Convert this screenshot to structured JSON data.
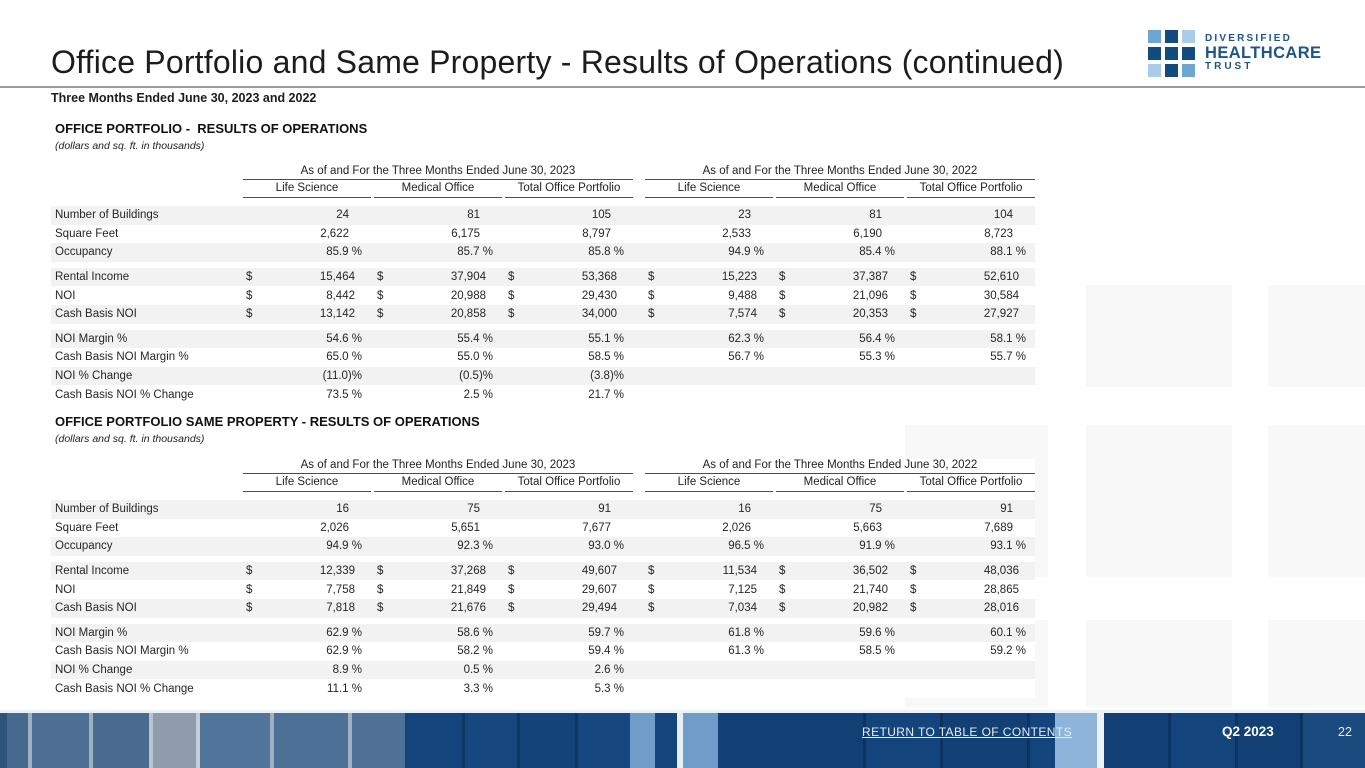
{
  "header": {
    "title": "Office Portfolio and Same Property - Results of Operations (continued)",
    "subtitle": "Three Months Ended June 30, 2023 and 2022",
    "logo": {
      "line1": "DIVERSIFIED",
      "line2": "HEALTHCARE",
      "line3": "TRUST",
      "colors": {
        "navy": "#134a80",
        "mid_blue": "#6ea5d2",
        "light_blue": "#a9cce7",
        "text": "#1d5586"
      }
    }
  },
  "tables": [
    {
      "section_title": "OFFICE PORTFOLIO -  RESULTS OF OPERATIONS",
      "section_note": "(dollars and sq. ft. in thousands)",
      "group_headers": [
        "As of and For the Three Months Ended June 30, 2023",
        "As of and For the Three Months Ended June 30, 2022"
      ],
      "column_headers": [
        "Life Science",
        "Medical Office",
        "Total Office Portfolio",
        "Life Science",
        "Medical Office",
        "Total Office Portfolio"
      ],
      "rows": [
        {
          "label": "Number of Buildings",
          "type": "num",
          "values": [
            "24",
            "81",
            "105",
            "23",
            "81",
            "104"
          ]
        },
        {
          "label": "Square Feet",
          "type": "num",
          "values": [
            "2,622",
            "6,175",
            "8,797",
            "2,533",
            "6,190",
            "8,723"
          ]
        },
        {
          "label": "Occupancy",
          "type": "pct",
          "values": [
            "85.9 %",
            "85.7 %",
            "85.8 %",
            "94.9 %",
            "85.4 %",
            "88.1 %"
          ]
        },
        {
          "label": "Rental Income",
          "type": "money",
          "values": [
            "15,464",
            "37,904",
            "53,368",
            "15,223",
            "37,387",
            "52,610"
          ]
        },
        {
          "label": "NOI",
          "type": "money",
          "values": [
            "8,442",
            "20,988",
            "29,430",
            "9,488",
            "21,096",
            "30,584"
          ]
        },
        {
          "label": "Cash Basis NOI",
          "type": "money",
          "values": [
            "13,142",
            "20,858",
            "34,000",
            "7,574",
            "20,353",
            "27,927"
          ]
        },
        {
          "label": "NOI Margin %",
          "type": "pct",
          "values": [
            "54.6 %",
            "55.4 %",
            "55.1 %",
            "62.3 %",
            "56.4 %",
            "58.1 %"
          ]
        },
        {
          "label": "Cash Basis NOI Margin %",
          "type": "pct",
          "values": [
            "65.0 %",
            "55.0 %",
            "58.5 %",
            "56.7 %",
            "55.3 %",
            "55.7 %"
          ]
        },
        {
          "label": "NOI % Change",
          "type": "pct",
          "values": [
            "(11.0)%",
            "(0.5)%",
            "(3.8)%",
            "",
            "",
            ""
          ]
        },
        {
          "label": "Cash Basis NOI % Change",
          "type": "pct",
          "values": [
            "73.5 %",
            "2.5 %",
            "21.7 %",
            "",
            "",
            ""
          ]
        }
      ],
      "group_breaks_after": [
        2,
        5
      ]
    },
    {
      "section_title": "OFFICE PORTFOLIO SAME PROPERTY - RESULTS OF OPERATIONS",
      "section_note": "(dollars and sq. ft. in thousands)",
      "group_headers": [
        "As of and For the Three Months Ended June 30, 2023",
        "As of and For the Three Months Ended June 30, 2022"
      ],
      "column_headers": [
        "Life Science",
        "Medical Office",
        "Total Office Portfolio",
        "Life Science",
        "Medical Office",
        "Total Office Portfolio"
      ],
      "rows": [
        {
          "label": "Number of Buildings",
          "type": "num",
          "values": [
            "16",
            "75",
            "91",
            "16",
            "75",
            "91"
          ]
        },
        {
          "label": "Square Feet",
          "type": "num",
          "values": [
            "2,026",
            "5,651",
            "7,677",
            "2,026",
            "5,663",
            "7,689"
          ]
        },
        {
          "label": "Occupancy",
          "type": "pct",
          "values": [
            "94.9 %",
            "92.3 %",
            "93.0 %",
            "96.5 %",
            "91.9 %",
            "93.1 %"
          ]
        },
        {
          "label": "Rental Income",
          "type": "money",
          "values": [
            "12,339",
            "37,268",
            "49,607",
            "11,534",
            "36,502",
            "48,036"
          ]
        },
        {
          "label": "NOI",
          "type": "money",
          "values": [
            "7,758",
            "21,849",
            "29,607",
            "7,125",
            "21,740",
            "28,865"
          ]
        },
        {
          "label": "Cash Basis NOI",
          "type": "money",
          "values": [
            "7,818",
            "21,676",
            "29,494",
            "7,034",
            "20,982",
            "28,016"
          ]
        },
        {
          "label": "NOI Margin %",
          "type": "pct",
          "values": [
            "62.9 %",
            "58.6 %",
            "59.7 %",
            "61.8 %",
            "59.6 %",
            "60.1 %"
          ]
        },
        {
          "label": "Cash Basis NOI Margin %",
          "type": "pct",
          "values": [
            "62.9 %",
            "58.2 %",
            "59.4 %",
            "61.3 %",
            "58.5 %",
            "59.2 %"
          ]
        },
        {
          "label": "NOI % Change",
          "type": "pct",
          "values": [
            "8.9 %",
            "0.5 %",
            "2.6 %",
            "",
            "",
            ""
          ]
        },
        {
          "label": "Cash Basis NOI % Change",
          "type": "pct",
          "values": [
            "11.1 %",
            "3.3 %",
            "5.3 %",
            "",
            "",
            ""
          ]
        }
      ],
      "group_breaks_after": [
        2,
        5
      ]
    }
  ],
  "footer": {
    "link_label": "RETURN TO TABLE OF CONTENTS",
    "quarter_label": "Q2 2023",
    "page_number": "22",
    "colors": {
      "navy": "#14447c",
      "slate": "#4d6f94",
      "light_pane": "#8fb4d9"
    }
  }
}
